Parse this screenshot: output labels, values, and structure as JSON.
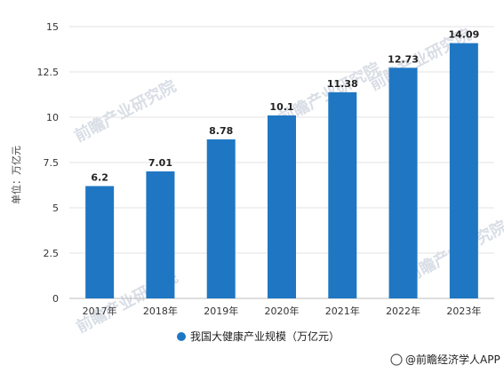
{
  "chart_data": {
    "type": "bar",
    "categories": [
      "2017年",
      "2018年",
      "2019年",
      "2020年",
      "2021年",
      "2022年",
      "2023年"
    ],
    "values": [
      6.2,
      7.01,
      8.78,
      10.1,
      11.38,
      12.73,
      14.09
    ],
    "value_labels": [
      "6.2",
      "7.01",
      "8.78",
      "10.1",
      "11.38",
      "12.73",
      "14.09"
    ],
    "ylabel": "单位：万亿元",
    "ylim": [
      0,
      15
    ],
    "yticks": [
      "0",
      "2.5",
      "5",
      "7.5",
      "10",
      "12.5",
      "15"
    ],
    "ytick_values": [
      0,
      2.5,
      5,
      7.5,
      10,
      12.5,
      15
    ],
    "grid": true,
    "legend_position": "bottom",
    "series": [
      {
        "name": "我国大健康产业规模（万亿元）",
        "color": "#1f77c3"
      }
    ]
  },
  "watermark": {
    "text": "前瞻产业研究院"
  },
  "footer": {
    "source": "@前瞻经济学人APP"
  }
}
